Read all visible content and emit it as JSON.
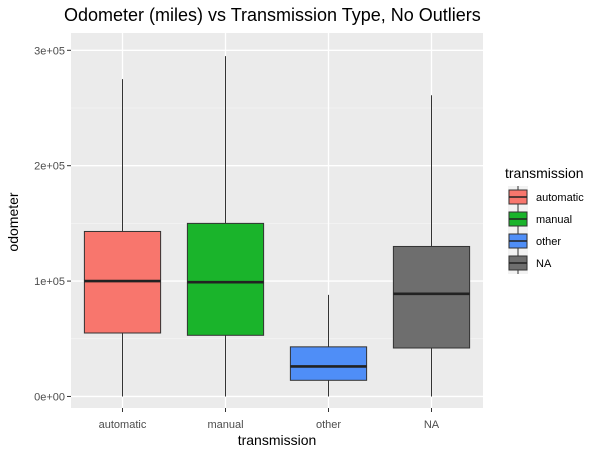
{
  "chart_data": {
    "type": "boxplot",
    "title": "Odometer (miles) vs Transmission Type, No Outliers",
    "xlabel": "transmission",
    "ylabel": "odometer",
    "categories": [
      "automatic",
      "manual",
      "other",
      "NA"
    ],
    "y_ticks": [
      {
        "value": 0,
        "label": "0e+00"
      },
      {
        "value": 100000,
        "label": "1e+05"
      },
      {
        "value": 200000,
        "label": "2e+05"
      },
      {
        "value": 300000,
        "label": "3e+05"
      }
    ],
    "ylim": [
      -10000,
      315000
    ],
    "boxes": [
      {
        "category": "automatic",
        "min": 0,
        "q1": 55000,
        "median": 100000,
        "q3": 143000,
        "max": 275000,
        "color": "#F8766D"
      },
      {
        "category": "manual",
        "min": 0,
        "q1": 53000,
        "median": 99000,
        "q3": 150000,
        "max": 295000,
        "color": "#1AB42B"
      },
      {
        "category": "other",
        "min": 0,
        "q1": 14000,
        "median": 26000,
        "q3": 43000,
        "max": 88000,
        "color": "#4F8EF7"
      },
      {
        "category": "NA",
        "min": 0,
        "q1": 42000,
        "median": 89000,
        "q3": 130000,
        "max": 261000,
        "color": "#6E6E6E"
      }
    ],
    "legend": {
      "title": "transmission",
      "position": "right",
      "entries": [
        {
          "label": "automatic",
          "color": "#F8766D"
        },
        {
          "label": "manual",
          "color": "#1AB42B"
        },
        {
          "label": "other",
          "color": "#4F8EF7"
        },
        {
          "label": "NA",
          "color": "#6E6E6E"
        }
      ]
    },
    "grid": true,
    "panel_background": "#EBEBEB"
  }
}
